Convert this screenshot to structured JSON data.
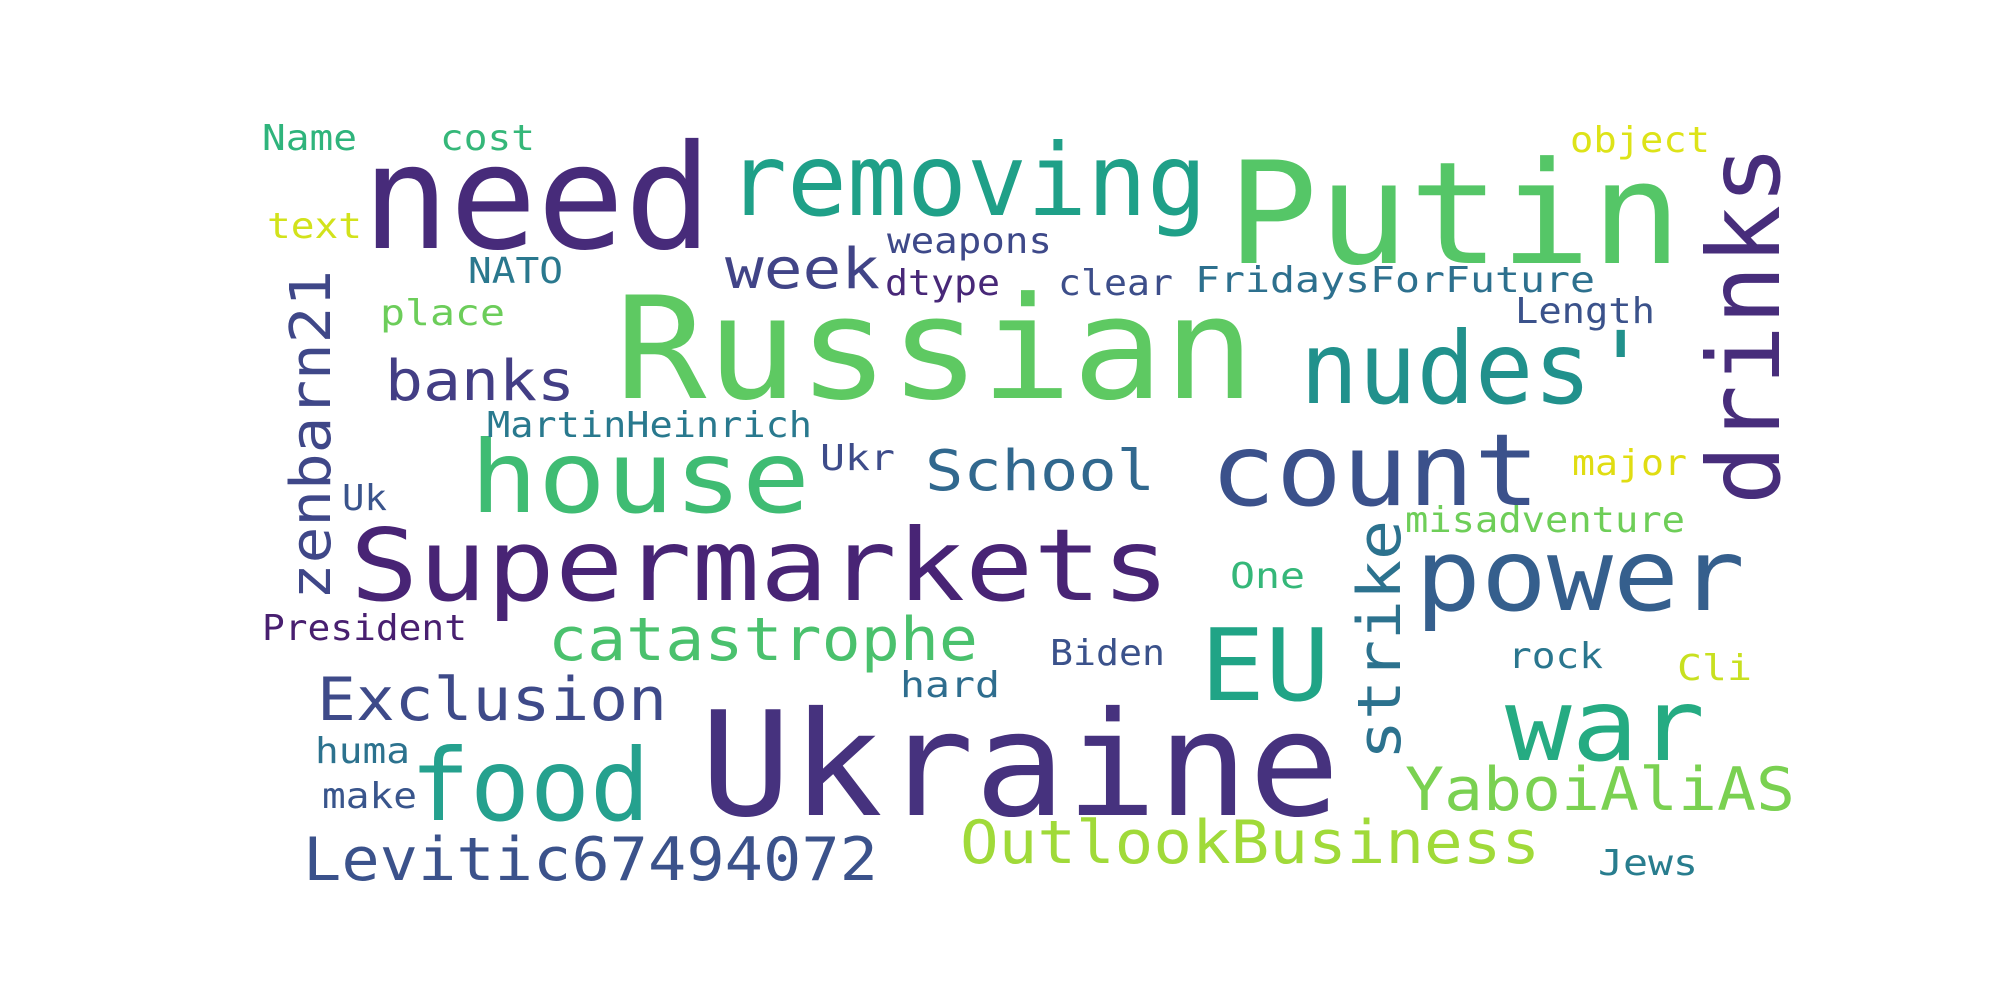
{
  "words": [
    {
      "text": "need",
      "color": "#472b7a"
    },
    {
      "text": "Putin",
      "color": "#55c667"
    },
    {
      "text": "removing",
      "color": "#1fa088"
    },
    {
      "text": "drinks",
      "color": "#472d7b"
    },
    {
      "text": "Russian",
      "color": "#5ec962"
    },
    {
      "text": "nudes'",
      "color": "#21918c"
    },
    {
      "text": "count",
      "color": "#3b518b"
    },
    {
      "text": "house",
      "color": "#3fbc73"
    },
    {
      "text": "Supermarkets",
      "color": "#482475"
    },
    {
      "text": "power",
      "color": "#355f8d"
    },
    {
      "text": "EU",
      "color": "#20a486"
    },
    {
      "text": "Ukraine",
      "color": "#46327e"
    },
    {
      "text": "war",
      "color": "#25ab82"
    },
    {
      "text": "food",
      "color": "#25a18e"
    },
    {
      "text": "strike",
      "color": "#2c728e"
    },
    {
      "text": "catastrophe",
      "color": "#4ac16d"
    },
    {
      "text": "Exclusion",
      "color": "#3e4a89"
    },
    {
      "text": "zenbarn21",
      "color": "#3f4788"
    },
    {
      "text": "YaboiAliAS",
      "color": "#7ad151"
    },
    {
      "text": "OutlookBusiness",
      "color": "#a0da39"
    },
    {
      "text": "Levitic67494072",
      "color": "#3b528b"
    },
    {
      "text": "week",
      "color": "#414487"
    },
    {
      "text": "banks",
      "color": "#433e85"
    },
    {
      "text": "School",
      "color": "#31688e"
    },
    {
      "text": "place",
      "color": "#6ccd5a"
    },
    {
      "text": "FridaysForFuture",
      "color": "#2d708e"
    },
    {
      "text": "weapons",
      "color": "#3e4989"
    },
    {
      "text": "dtype",
      "color": "#482878"
    },
    {
      "text": "clear",
      "color": "#3d4e8a"
    },
    {
      "text": "NATO",
      "color": "#2a788e"
    },
    {
      "text": "Length",
      "color": "#3b528b"
    },
    {
      "text": "MartinHeinrich",
      "color": "#29798e"
    },
    {
      "text": "Ukr",
      "color": "#3e4c8a"
    },
    {
      "text": "misadventure",
      "color": "#6ece58"
    },
    {
      "text": "Uk",
      "color": "#3a548c"
    },
    {
      "text": "major",
      "color": "#e0dd12"
    },
    {
      "text": "One",
      "color": "#35b779"
    },
    {
      "text": "President",
      "color": "#481f70"
    },
    {
      "text": "Biden",
      "color": "#3b528b"
    },
    {
      "text": "rock",
      "color": "#2a768e"
    },
    {
      "text": "Cli",
      "color": "#c8e020"
    },
    {
      "text": "hard",
      "color": "#2e6d8e"
    },
    {
      "text": "huma",
      "color": "#2c728e"
    },
    {
      "text": "make",
      "color": "#39558c"
    },
    {
      "text": "Jews",
      "color": "#287d8e"
    },
    {
      "text": "Name",
      "color": "#2fb47c"
    },
    {
      "text": "cost",
      "color": "#35b779"
    },
    {
      "text": "object",
      "color": "#dde318"
    },
    {
      "text": "text",
      "color": "#d2e21b"
    }
  ]
}
